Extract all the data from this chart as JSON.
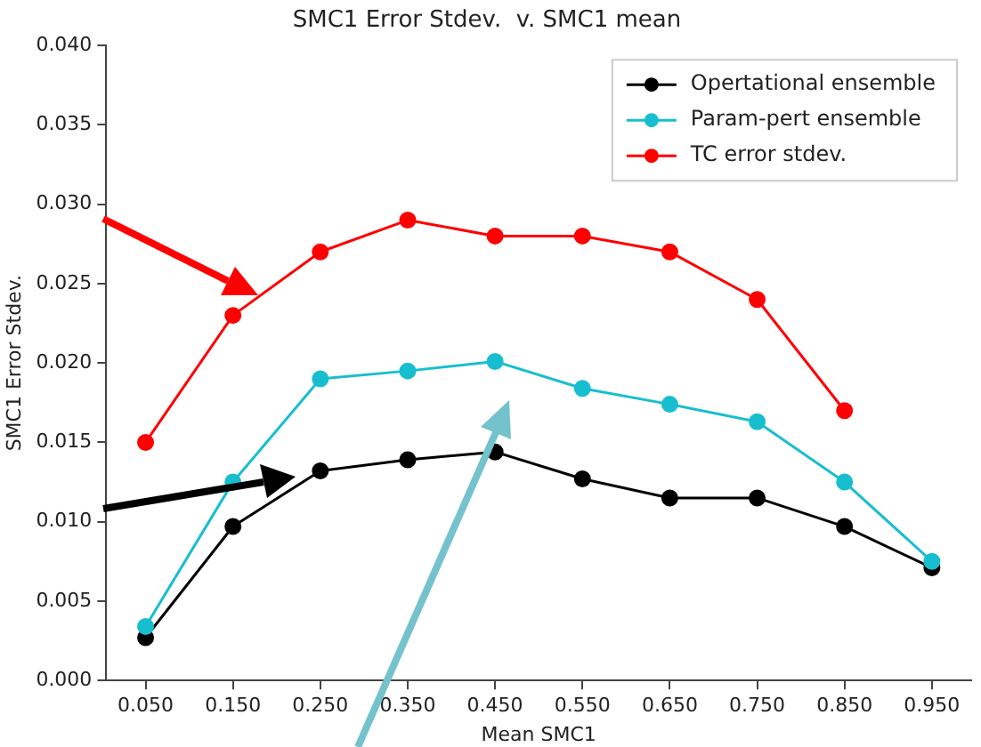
{
  "chart_data": {
    "type": "line",
    "title": "SMC1 Error Stdev.  v. SMC1 mean",
    "xlabel": "Mean SMC1",
    "ylabel": "SMC1 Error Stdev.",
    "x": [
      0.05,
      0.15,
      0.25,
      0.35,
      0.45,
      0.55,
      0.65,
      0.75,
      0.85,
      0.95
    ],
    "series": [
      {
        "name": "Opertational ensemble",
        "color": "#000000",
        "values": [
          0.0027,
          0.0097,
          0.0132,
          0.0139,
          0.0144,
          0.0127,
          0.0115,
          0.0115,
          0.0097,
          0.0071
        ]
      },
      {
        "name": "Param-pert ensemble",
        "color": "#17becf",
        "values": [
          0.0034,
          0.0125,
          0.019,
          0.0195,
          0.0201,
          0.0184,
          0.0174,
          0.0163,
          0.0125,
          0.0075
        ]
      },
      {
        "name": "TC error stdev.",
        "color": "#ff0000",
        "values": [
          0.015,
          0.023,
          0.027,
          0.029,
          0.028,
          0.028,
          0.027,
          0.024,
          0.017,
          null
        ]
      }
    ],
    "xlim": [
      0.005,
      0.995
    ],
    "xticks": [
      {
        "value": 0.05,
        "label": "0.050"
      },
      {
        "value": 0.15,
        "label": "0.150"
      },
      {
        "value": 0.25,
        "label": "0.250"
      },
      {
        "value": 0.35,
        "label": "0.350"
      },
      {
        "value": 0.45,
        "label": "0.450"
      },
      {
        "value": 0.55,
        "label": "0.550"
      },
      {
        "value": 0.65,
        "label": "0.650"
      },
      {
        "value": 0.75,
        "label": "0.750"
      },
      {
        "value": 0.85,
        "label": "0.850"
      },
      {
        "value": 0.95,
        "label": "0.950"
      }
    ],
    "ylim": [
      0,
      0.04
    ],
    "yticks": [
      {
        "value": 0,
        "label": "0.000"
      },
      {
        "value": 0.005,
        "label": "0.005"
      },
      {
        "value": 0.01,
        "label": "0.010"
      },
      {
        "value": 0.015,
        "label": "0.015"
      },
      {
        "value": 0.02,
        "label": "0.020"
      },
      {
        "value": 0.025,
        "label": "0.025"
      },
      {
        "value": 0.03,
        "label": "0.030"
      },
      {
        "value": 0.035,
        "label": "0.035"
      },
      {
        "value": 0.04,
        "label": "0.040"
      }
    ],
    "grid": false,
    "legend": "top right",
    "marker": "circle",
    "line_style": "solid"
  }
}
